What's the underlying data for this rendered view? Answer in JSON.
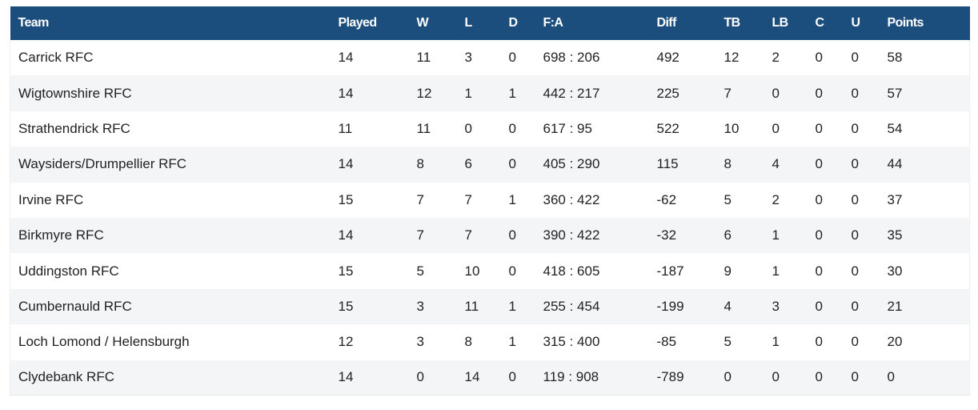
{
  "table": {
    "headers": {
      "team": "Team",
      "played": "Played",
      "w": "W",
      "l": "L",
      "d": "D",
      "fa": "F:A",
      "diff": "Diff",
      "tb": "TB",
      "lb": "LB",
      "c": "C",
      "u": "U",
      "points": "Points"
    },
    "rows": [
      {
        "team": "Carrick RFC",
        "played": "14",
        "w": "11",
        "l": "3",
        "d": "0",
        "fa": "698 : 206",
        "diff": "492",
        "tb": "12",
        "lb": "2",
        "c": "0",
        "u": "0",
        "points": "58"
      },
      {
        "team": "Wigtownshire RFC",
        "played": "14",
        "w": "12",
        "l": "1",
        "d": "1",
        "fa": "442 : 217",
        "diff": "225",
        "tb": "7",
        "lb": "0",
        "c": "0",
        "u": "0",
        "points": "57"
      },
      {
        "team": "Strathendrick RFC",
        "played": "11",
        "w": "11",
        "l": "0",
        "d": "0",
        "fa": "617 : 95",
        "diff": "522",
        "tb": "10",
        "lb": "0",
        "c": "0",
        "u": "0",
        "points": "54"
      },
      {
        "team": "Waysiders/Drumpellier RFC",
        "played": "14",
        "w": "8",
        "l": "6",
        "d": "0",
        "fa": "405 : 290",
        "diff": "115",
        "tb": "8",
        "lb": "4",
        "c": "0",
        "u": "0",
        "points": "44"
      },
      {
        "team": "Irvine RFC",
        "played": "15",
        "w": "7",
        "l": "7",
        "d": "1",
        "fa": "360 : 422",
        "diff": "-62",
        "tb": "5",
        "lb": "2",
        "c": "0",
        "u": "0",
        "points": "37"
      },
      {
        "team": "Birkmyre RFC",
        "played": "14",
        "w": "7",
        "l": "7",
        "d": "0",
        "fa": "390 : 422",
        "diff": "-32",
        "tb": "6",
        "lb": "1",
        "c": "0",
        "u": "0",
        "points": "35"
      },
      {
        "team": "Uddingston RFC",
        "played": "15",
        "w": "5",
        "l": "10",
        "d": "0",
        "fa": "418 : 605",
        "diff": "-187",
        "tb": "9",
        "lb": "1",
        "c": "0",
        "u": "0",
        "points": "30"
      },
      {
        "team": "Cumbernauld RFC",
        "played": "15",
        "w": "3",
        "l": "11",
        "d": "1",
        "fa": "255 : 454",
        "diff": "-199",
        "tb": "4",
        "lb": "3",
        "c": "0",
        "u": "0",
        "points": "21"
      },
      {
        "team": "Loch Lomond / Helensburgh",
        "played": "12",
        "w": "3",
        "l": "8",
        "d": "1",
        "fa": "315 : 400",
        "diff": "-85",
        "tb": "5",
        "lb": "1",
        "c": "0",
        "u": "0",
        "points": "20"
      },
      {
        "team": "Clydebank RFC",
        "played": "14",
        "w": "0",
        "l": "14",
        "d": "0",
        "fa": "119 : 908",
        "diff": "-789",
        "tb": "0",
        "lb": "0",
        "c": "0",
        "u": "0",
        "points": "0"
      }
    ]
  },
  "colors": {
    "header_background": "#1c4e7d",
    "header_text": "#ffffff",
    "row_alt_background": "#f4f5f7",
    "body_text": "#222222"
  }
}
